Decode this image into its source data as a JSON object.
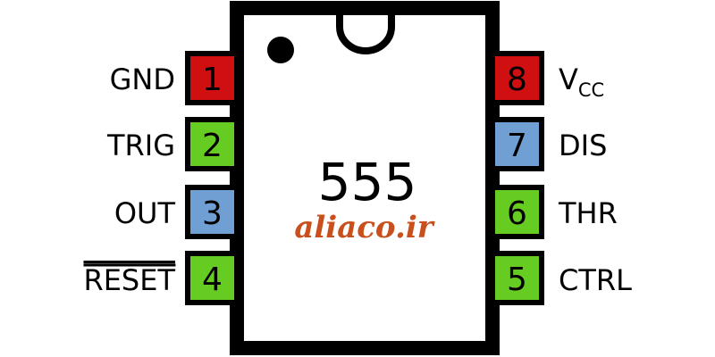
{
  "chip": {
    "name": "555",
    "watermark": "aliaco.ir"
  },
  "colors": {
    "red": "#d01010",
    "green": "#66cc22",
    "blue": "#6f9fd3",
    "outline": "#000000"
  },
  "pins_left": [
    {
      "number": "1",
      "label": "GND",
      "color": "red"
    },
    {
      "number": "2",
      "label": "TRIG",
      "color": "green"
    },
    {
      "number": "3",
      "label": "OUT",
      "color": "blue"
    },
    {
      "number": "4",
      "label": "RESET",
      "color": "green",
      "overline": true
    }
  ],
  "pins_right": [
    {
      "number": "8",
      "label": "V",
      "sub": "CC",
      "color": "red"
    },
    {
      "number": "7",
      "label": "DIS",
      "color": "blue"
    },
    {
      "number": "6",
      "label": "THR",
      "color": "green"
    },
    {
      "number": "5",
      "label": "CTRL",
      "color": "green"
    }
  ]
}
